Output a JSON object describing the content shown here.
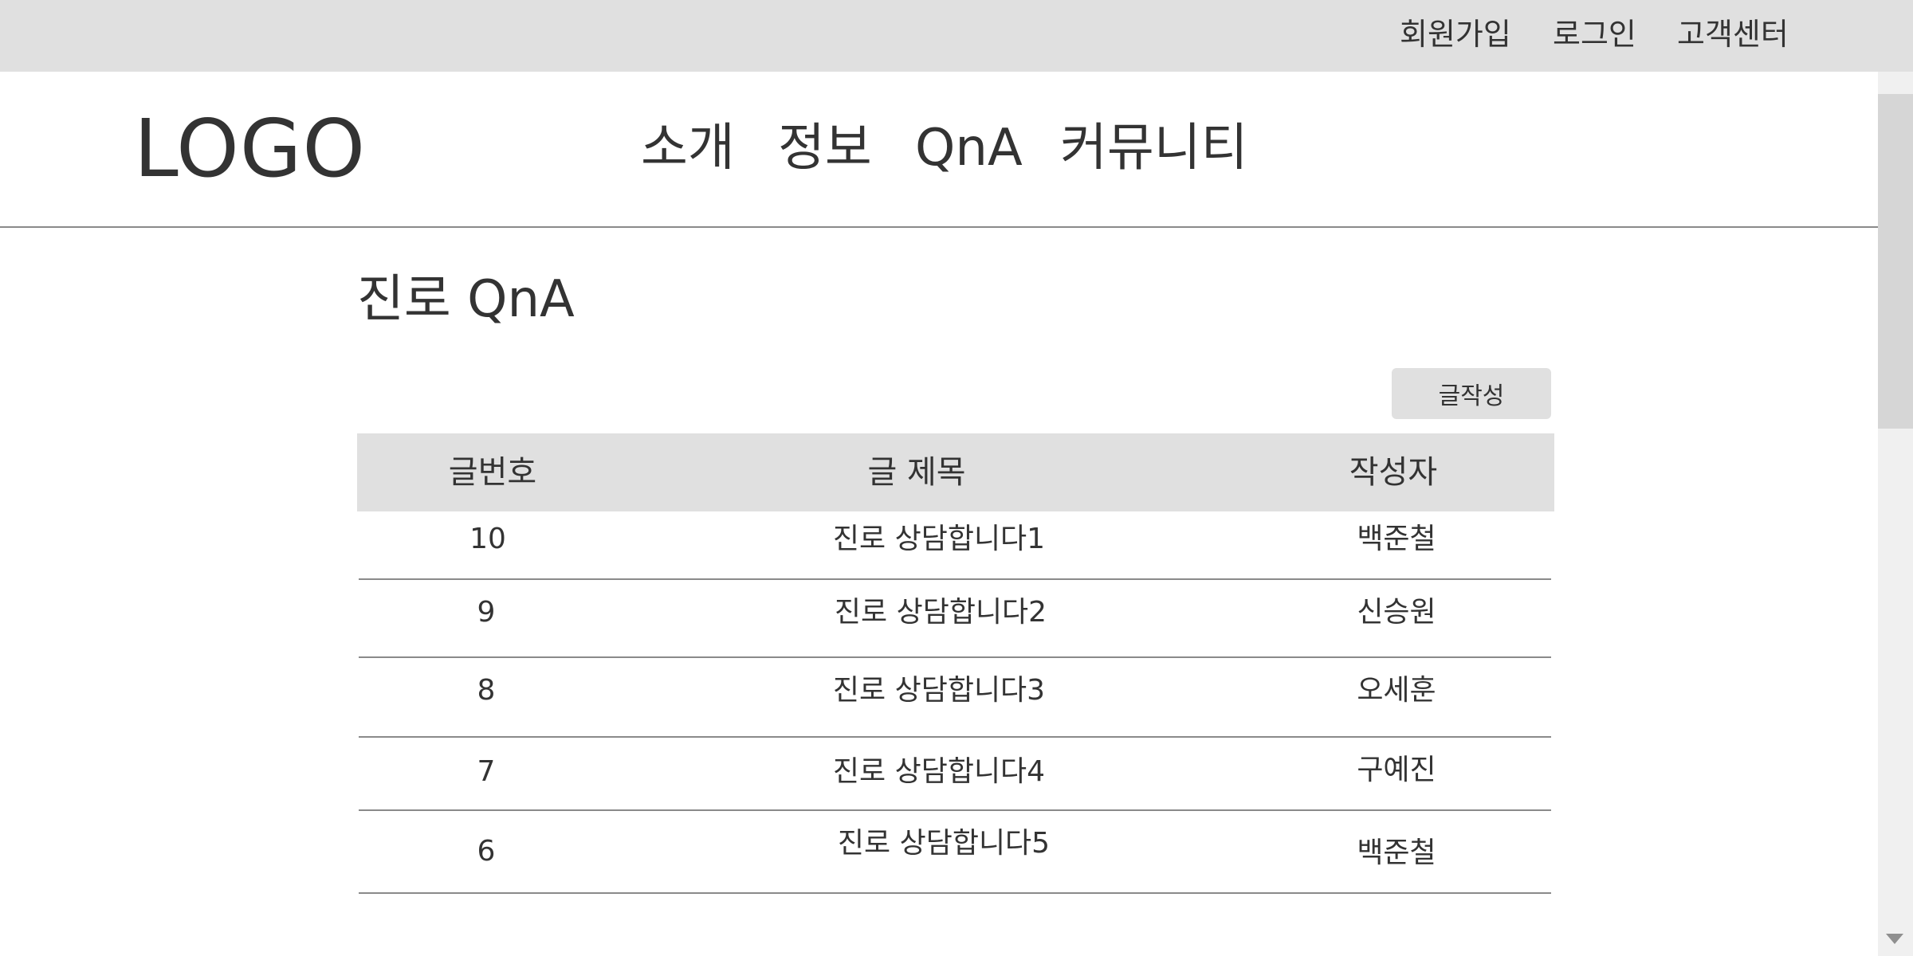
{
  "top_bar": {
    "links": [
      "회원가입",
      "로그인",
      "고객센터"
    ]
  },
  "header": {
    "logo": "LOGO",
    "nav": [
      "소개",
      "정보",
      "QnA",
      "커뮤니티"
    ]
  },
  "board": {
    "title": "진로 QnA",
    "write_button": "글작성",
    "columns": [
      "글번호",
      "글 제목",
      "작성자"
    ],
    "rows": [
      {
        "no": "10",
        "title": "진로 상담합니다1",
        "author": "백준철"
      },
      {
        "no": "9",
        "title": "진로 상담합니다2",
        "author": "신승원"
      },
      {
        "no": "8",
        "title": "진로 상담합니다3",
        "author": "오세훈"
      },
      {
        "no": "7",
        "title": "진로 상담합니다4",
        "author": "구예진"
      },
      {
        "no": "6",
        "title": "진로 상담합니다5",
        "author": "백준철"
      }
    ]
  },
  "colors": {
    "bar_gray": "#e0e0e0",
    "text": "#333333",
    "divider": "#8a8a8a"
  }
}
